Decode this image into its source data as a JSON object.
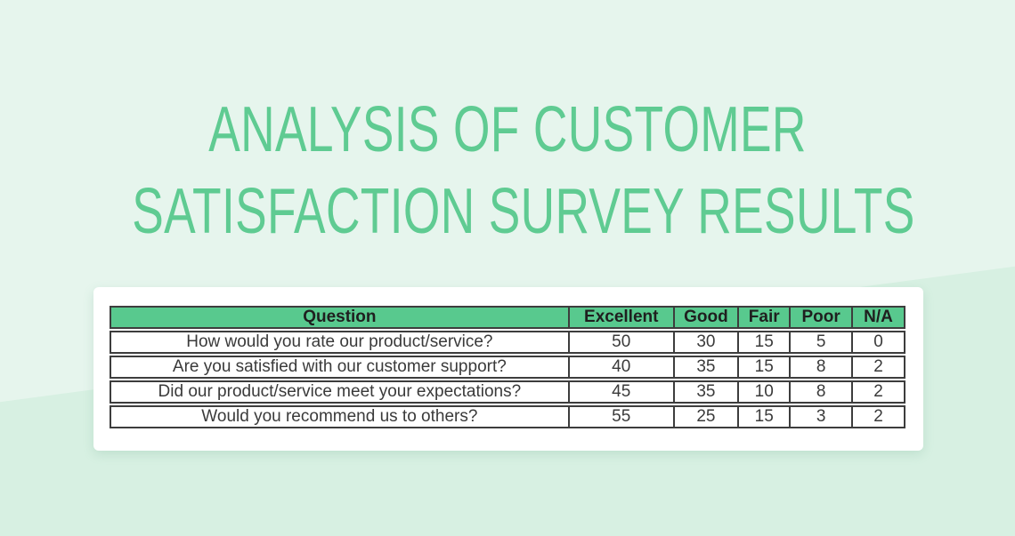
{
  "title": {
    "line1": "ANALYSIS OF CUSTOMER",
    "line2": "SATISFACTION SURVEY RESULTS"
  },
  "colors": {
    "background": "#e6f5ed",
    "background_shade": "#d7f0e2",
    "title_green": "#5fcb92",
    "header_green": "#58c98e",
    "table_border": "#3d3d3d",
    "card_background": "#ffffff"
  },
  "chart_data": {
    "type": "table",
    "title": "ANALYSIS OF CUSTOMER SATISFACTION SURVEY RESULTS",
    "columns": [
      "Question",
      "Excellent",
      "Good",
      "Fair",
      "Poor",
      "N/A"
    ],
    "rows": [
      [
        "How would you rate our product/service?",
        50,
        30,
        15,
        5,
        0
      ],
      [
        "Are you satisfied with our customer support?",
        40,
        35,
        15,
        8,
        2
      ],
      [
        "Did our product/service meet your expectations?",
        45,
        35,
        10,
        8,
        2
      ],
      [
        "Would you recommend us to others?",
        55,
        25,
        15,
        3,
        2
      ]
    ]
  }
}
